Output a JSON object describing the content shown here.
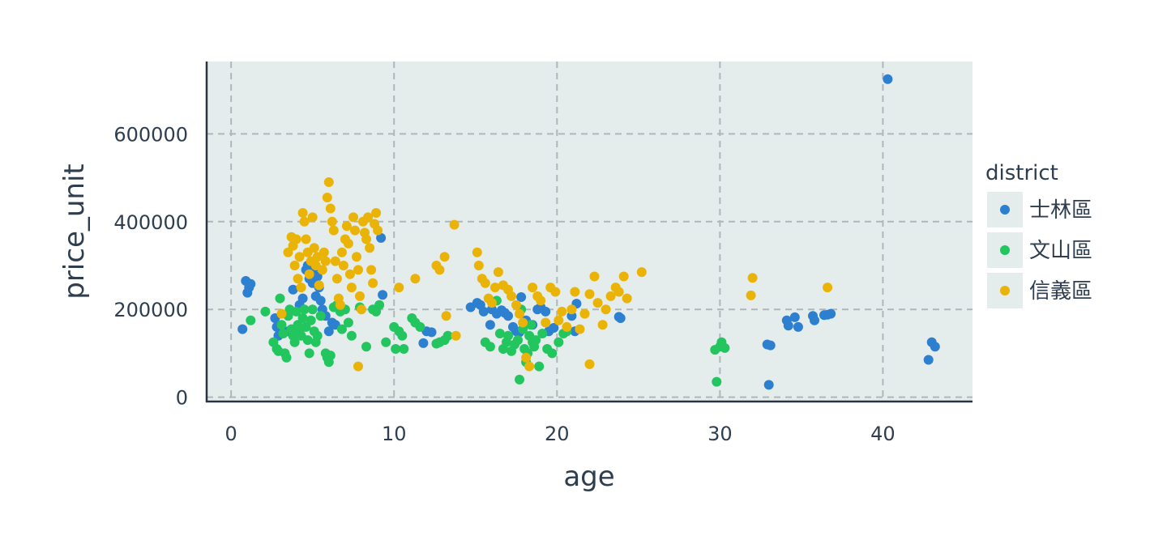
{
  "chart_data": {
    "type": "scatter",
    "xlabel": "age",
    "ylabel": "price_unit",
    "xlim": [
      -1.5,
      45.5
    ],
    "ylim": [
      -10000,
      765000
    ],
    "xticks": [
      0,
      10,
      20,
      30,
      40
    ],
    "yticks": [
      0,
      200000,
      400000,
      600000
    ],
    "xtick_labels": [
      "0",
      "10",
      "20",
      "30",
      "40"
    ],
    "ytick_labels": [
      "0",
      "200000",
      "400000",
      "600000"
    ],
    "grid": true,
    "legend": {
      "title": "district",
      "placement": "right"
    },
    "series": [
      {
        "name": "士林區",
        "color": "#2d7fd0",
        "points": [
          [
            0.7,
            155000
          ],
          [
            0.9,
            265000
          ],
          [
            1.0,
            238000
          ],
          [
            1.1,
            250000
          ],
          [
            1.2,
            258000
          ],
          [
            2.7,
            180000
          ],
          [
            2.8,
            160000
          ],
          [
            2.9,
            140000
          ],
          [
            3.5,
            150000
          ],
          [
            3.8,
            245000
          ],
          [
            4.2,
            210000
          ],
          [
            4.4,
            225000
          ],
          [
            4.6,
            290000
          ],
          [
            4.7,
            300000
          ],
          [
            4.8,
            270000
          ],
          [
            4.9,
            280000
          ],
          [
            5.0,
            260000
          ],
          [
            5.1,
            295000
          ],
          [
            5.2,
            230000
          ],
          [
            5.3,
            275000
          ],
          [
            5.4,
            250000
          ],
          [
            5.5,
            220000
          ],
          [
            5.6,
            200000
          ],
          [
            5.8,
            185000
          ],
          [
            6.0,
            150000
          ],
          [
            6.2,
            170000
          ],
          [
            6.4,
            165000
          ],
          [
            9.2,
            363000
          ],
          [
            9.3,
            233000
          ],
          [
            11.8,
            123000
          ],
          [
            12.0,
            150000
          ],
          [
            12.3,
            148000
          ],
          [
            14.7,
            205000
          ],
          [
            15.1,
            215000
          ],
          [
            15.3,
            210000
          ],
          [
            15.5,
            195000
          ],
          [
            15.9,
            165000
          ],
          [
            16.0,
            200000
          ],
          [
            16.3,
            190000
          ],
          [
            16.6,
            198000
          ],
          [
            16.8,
            192000
          ],
          [
            17.0,
            185000
          ],
          [
            17.3,
            160000
          ],
          [
            17.5,
            150000
          ],
          [
            17.7,
            148000
          ],
          [
            17.8,
            228000
          ],
          [
            18.1,
            175000
          ],
          [
            18.5,
            165000
          ],
          [
            18.8,
            200000
          ],
          [
            19.0,
            205000
          ],
          [
            19.3,
            195000
          ],
          [
            19.5,
            150000
          ],
          [
            19.8,
            158000
          ],
          [
            20.9,
            185000
          ],
          [
            21.1,
            150000
          ],
          [
            21.2,
            213000
          ],
          [
            23.8,
            183000
          ],
          [
            23.9,
            180000
          ],
          [
            32.9,
            120000
          ],
          [
            33.0,
            28000
          ],
          [
            33.1,
            118000
          ],
          [
            34.1,
            175000
          ],
          [
            34.2,
            163000
          ],
          [
            34.6,
            182000
          ],
          [
            34.8,
            160000
          ],
          [
            35.7,
            185000
          ],
          [
            35.8,
            175000
          ],
          [
            36.4,
            187000
          ],
          [
            36.6,
            188000
          ],
          [
            36.8,
            190000
          ],
          [
            40.3,
            725000
          ],
          [
            42.8,
            85000
          ],
          [
            43.0,
            125000
          ],
          [
            43.2,
            115000
          ]
        ]
      },
      {
        "name": "文山區",
        "color": "#22c55e",
        "points": [
          [
            1.2,
            175000
          ],
          [
            2.1,
            195000
          ],
          [
            2.6,
            125000
          ],
          [
            2.8,
            110000
          ],
          [
            2.9,
            105000
          ],
          [
            3.0,
            225000
          ],
          [
            3.1,
            165000
          ],
          [
            3.2,
            145000
          ],
          [
            3.3,
            100000
          ],
          [
            3.4,
            90000
          ],
          [
            3.5,
            185000
          ],
          [
            3.6,
            200000
          ],
          [
            3.7,
            155000
          ],
          [
            3.8,
            140000
          ],
          [
            3.9,
            125000
          ],
          [
            4.0,
            195000
          ],
          [
            4.1,
            165000
          ],
          [
            4.2,
            150000
          ],
          [
            4.3,
            140000
          ],
          [
            4.4,
            180000
          ],
          [
            4.5,
            200000
          ],
          [
            4.6,
            160000
          ],
          [
            4.7,
            130000
          ],
          [
            4.8,
            100000
          ],
          [
            4.9,
            175000
          ],
          [
            5.0,
            200000
          ],
          [
            5.1,
            150000
          ],
          [
            5.2,
            125000
          ],
          [
            5.3,
            140000
          ],
          [
            5.5,
            185000
          ],
          [
            5.8,
            100000
          ],
          [
            5.9,
            90000
          ],
          [
            6.0,
            80000
          ],
          [
            6.1,
            95000
          ],
          [
            6.3,
            205000
          ],
          [
            6.5,
            210000
          ],
          [
            6.7,
            195000
          ],
          [
            6.8,
            155000
          ],
          [
            7.0,
            200000
          ],
          [
            7.2,
            170000
          ],
          [
            7.4,
            140000
          ],
          [
            7.9,
            205000
          ],
          [
            8.3,
            115000
          ],
          [
            8.7,
            200000
          ],
          [
            8.9,
            195000
          ],
          [
            9.1,
            210000
          ],
          [
            9.5,
            125000
          ],
          [
            10.0,
            160000
          ],
          [
            10.1,
            110000
          ],
          [
            10.3,
            150000
          ],
          [
            10.5,
            140000
          ],
          [
            10.6,
            110000
          ],
          [
            11.1,
            180000
          ],
          [
            11.3,
            170000
          ],
          [
            11.6,
            160000
          ],
          [
            12.6,
            122000
          ],
          [
            12.8,
            125000
          ],
          [
            13.1,
            130000
          ],
          [
            13.3,
            140000
          ],
          [
            15.6,
            125000
          ],
          [
            15.9,
            115000
          ],
          [
            16.3,
            220000
          ],
          [
            16.5,
            145000
          ],
          [
            16.7,
            110000
          ],
          [
            16.9,
            125000
          ],
          [
            17.0,
            140000
          ],
          [
            17.2,
            105000
          ],
          [
            17.4,
            120000
          ],
          [
            17.6,
            130000
          ],
          [
            17.7,
            40000
          ],
          [
            17.8,
            200000
          ],
          [
            17.9,
            155000
          ],
          [
            18.0,
            110000
          ],
          [
            18.1,
            80000
          ],
          [
            18.2,
            100000
          ],
          [
            18.3,
            140000
          ],
          [
            18.4,
            165000
          ],
          [
            18.5,
            125000
          ],
          [
            18.6,
            115000
          ],
          [
            18.7,
            130000
          ],
          [
            18.9,
            70000
          ],
          [
            19.1,
            145000
          ],
          [
            19.4,
            110000
          ],
          [
            19.7,
            100000
          ],
          [
            20.1,
            125000
          ],
          [
            20.4,
            145000
          ],
          [
            20.6,
            150000
          ],
          [
            29.7,
            108000
          ],
          [
            29.8,
            35000
          ],
          [
            30.0,
            115000
          ],
          [
            30.1,
            125000
          ],
          [
            30.3,
            112000
          ]
        ]
      },
      {
        "name": "信義區",
        "color": "#eab308",
        "points": [
          [
            3.1,
            190000
          ],
          [
            3.5,
            330000
          ],
          [
            3.7,
            365000
          ],
          [
            3.8,
            345000
          ],
          [
            3.9,
            300000
          ],
          [
            4.0,
            360000
          ],
          [
            4.1,
            270000
          ],
          [
            4.2,
            320000
          ],
          [
            4.3,
            250000
          ],
          [
            4.4,
            420000
          ],
          [
            4.5,
            400000
          ],
          [
            4.6,
            360000
          ],
          [
            4.7,
            330000
          ],
          [
            4.8,
            280000
          ],
          [
            4.9,
            310000
          ],
          [
            5.0,
            410000
          ],
          [
            5.1,
            340000
          ],
          [
            5.2,
            300000
          ],
          [
            5.3,
            320000
          ],
          [
            5.4,
            255000
          ],
          [
            5.6,
            290000
          ],
          [
            5.7,
            330000
          ],
          [
            5.8,
            310000
          ],
          [
            5.9,
            455000
          ],
          [
            6.0,
            490000
          ],
          [
            6.1,
            430000
          ],
          [
            6.2,
            400000
          ],
          [
            6.3,
            380000
          ],
          [
            6.4,
            310000
          ],
          [
            6.5,
            270000
          ],
          [
            6.6,
            225000
          ],
          [
            6.7,
            210000
          ],
          [
            6.8,
            330000
          ],
          [
            6.9,
            300000
          ],
          [
            7.0,
            360000
          ],
          [
            7.1,
            390000
          ],
          [
            7.2,
            350000
          ],
          [
            7.3,
            280000
          ],
          [
            7.4,
            250000
          ],
          [
            7.5,
            410000
          ],
          [
            7.6,
            380000
          ],
          [
            7.7,
            320000
          ],
          [
            7.8,
            290000
          ],
          [
            7.9,
            230000
          ],
          [
            8.0,
            200000
          ],
          [
            8.1,
            400000
          ],
          [
            8.2,
            375000
          ],
          [
            8.3,
            360000
          ],
          [
            8.4,
            410000
          ],
          [
            8.5,
            340000
          ],
          [
            8.6,
            290000
          ],
          [
            8.7,
            260000
          ],
          [
            8.8,
            395000
          ],
          [
            8.9,
            420000
          ],
          [
            9.0,
            380000
          ],
          [
            7.8,
            70000
          ],
          [
            10.3,
            250000
          ],
          [
            11.3,
            270000
          ],
          [
            12.6,
            300000
          ],
          [
            12.8,
            290000
          ],
          [
            13.1,
            320000
          ],
          [
            13.2,
            185000
          ],
          [
            13.7,
            393000
          ],
          [
            13.8,
            140000
          ],
          [
            15.1,
            330000
          ],
          [
            15.2,
            300000
          ],
          [
            15.4,
            270000
          ],
          [
            15.6,
            260000
          ],
          [
            15.8,
            225000
          ],
          [
            16.0,
            215000
          ],
          [
            16.2,
            250000
          ],
          [
            16.4,
            285000
          ],
          [
            16.7,
            255000
          ],
          [
            17.0,
            245000
          ],
          [
            17.2,
            230000
          ],
          [
            17.5,
            210000
          ],
          [
            17.7,
            190000
          ],
          [
            17.9,
            170000
          ],
          [
            18.1,
            90000
          ],
          [
            18.3,
            70000
          ],
          [
            18.5,
            250000
          ],
          [
            18.8,
            230000
          ],
          [
            19.0,
            220000
          ],
          [
            19.3,
            170000
          ],
          [
            19.6,
            250000
          ],
          [
            19.9,
            240000
          ],
          [
            20.1,
            175000
          ],
          [
            20.3,
            195000
          ],
          [
            20.6,
            160000
          ],
          [
            20.9,
            200000
          ],
          [
            21.1,
            240000
          ],
          [
            21.4,
            155000
          ],
          [
            21.7,
            190000
          ],
          [
            22.0,
            235000
          ],
          [
            22.0,
            75000
          ],
          [
            22.3,
            275000
          ],
          [
            22.5,
            215000
          ],
          [
            22.8,
            165000
          ],
          [
            23.0,
            200000
          ],
          [
            23.3,
            230000
          ],
          [
            23.6,
            250000
          ],
          [
            23.8,
            240000
          ],
          [
            24.1,
            275000
          ],
          [
            24.3,
            225000
          ],
          [
            25.2,
            285000
          ],
          [
            31.9,
            232000
          ],
          [
            32.0,
            272000
          ],
          [
            36.6,
            250000
          ]
        ]
      }
    ]
  },
  "colors": {
    "plot_background": "#e5ecec",
    "grid": "#b0b7bc",
    "axis": "#2a3340"
  }
}
